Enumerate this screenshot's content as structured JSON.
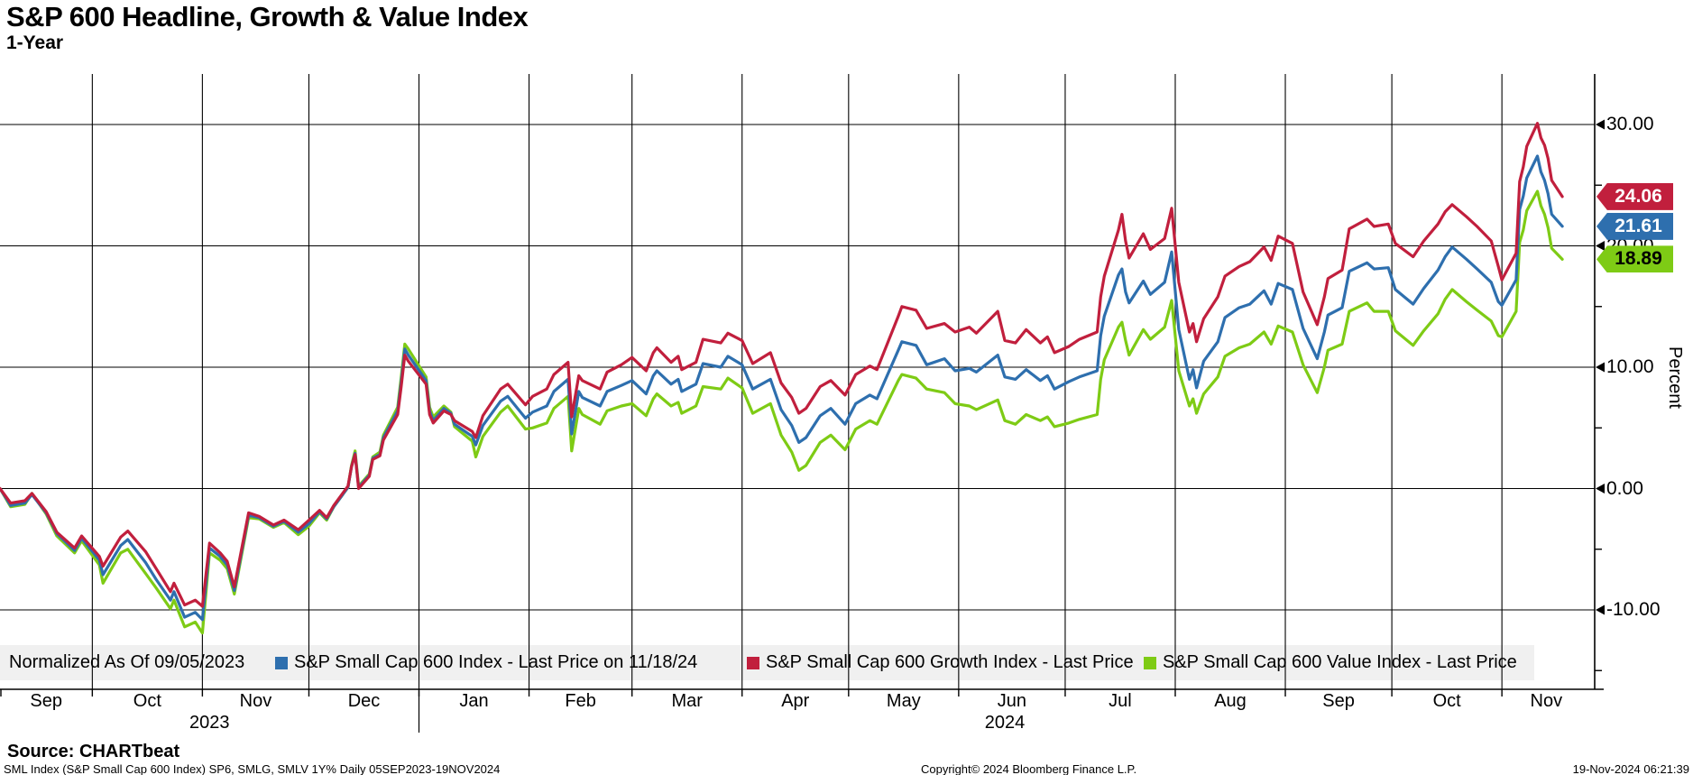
{
  "title": "S&P 600 Headline, Growth & Value Index",
  "subtitle": "1-Year",
  "y_axis": {
    "label": "Percent",
    "tick_labels": [
      "30.00",
      "20.00",
      "10.00",
      "0.00",
      "-10.00"
    ],
    "tick_values": [
      30,
      20,
      10,
      0,
      -10
    ],
    "minor_tick_values": [
      25,
      15,
      5,
      -5,
      -15
    ]
  },
  "last_price_badges": [
    {
      "value": "24.06",
      "v": 24.06,
      "bg": "#c11f3d",
      "fg": "#ffffff",
      "series": "growth"
    },
    {
      "value": "21.61",
      "v": 21.61,
      "bg": "#2e6fae",
      "fg": "#ffffff",
      "series": "headline"
    },
    {
      "value": "18.89",
      "v": 18.89,
      "bg": "#7ecb15",
      "fg": "#000000",
      "series": "value"
    }
  ],
  "legend": {
    "note": "Normalized As Of 09/05/2023",
    "band_color": "#f0f0f0",
    "items": [
      {
        "label": "S&P Small Cap 600 Index - Last Price on 11/18/24",
        "color": "#2e6fae",
        "series": "headline"
      },
      {
        "label": "S&P Small Cap 600 Growth Index - Last Price",
        "color": "#c11f3d",
        "series": "growth"
      },
      {
        "label": "S&P Small Cap 600 Value Index - Last Price",
        "color": "#7ecb15",
        "series": "value"
      }
    ]
  },
  "footer": {
    "source": "Source: CHARTbeat",
    "meta": "SML Index (S&P Small Cap 600 Index) SP6, SMLG, SMLV 1Y%  Daily 05SEP2023-19NOV2024",
    "copyright": "Copyright© 2024 Bloomberg Finance L.P.",
    "timestamp": "19-Nov-2024 06:21:39"
  },
  "chart_data": {
    "type": "line",
    "title": "S&P 600 Headline, Growth & Value Index",
    "ylabel": "Percent",
    "ylim": [
      -16.5,
      34
    ],
    "x_range": [
      "2023-09-05",
      "2024-11-19"
    ],
    "axis_end": "2024-11-26",
    "grid": true,
    "legend_position": "bottom",
    "month_gridlines": [
      "2023-10-01",
      "2023-11-01",
      "2023-12-01",
      "2024-01-01",
      "2024-02-01",
      "2024-03-01",
      "2024-04-01",
      "2024-05-01",
      "2024-06-01",
      "2024-07-01",
      "2024-08-01",
      "2024-09-01",
      "2024-10-01",
      "2024-11-01"
    ],
    "months": [
      {
        "label": "Sep",
        "start": "2023-09-05"
      },
      {
        "label": "Oct",
        "start": "2023-10-01"
      },
      {
        "label": "Nov",
        "start": "2023-11-01"
      },
      {
        "label": "Dec",
        "start": "2023-12-01"
      },
      {
        "label": "Jan",
        "start": "2024-01-01"
      },
      {
        "label": "Feb",
        "start": "2024-02-01"
      },
      {
        "label": "Mar",
        "start": "2024-03-01"
      },
      {
        "label": "Apr",
        "start": "2024-04-01"
      },
      {
        "label": "May",
        "start": "2024-05-01"
      },
      {
        "label": "Jun",
        "start": "2024-06-01"
      },
      {
        "label": "Jul",
        "start": "2024-07-01"
      },
      {
        "label": "Aug",
        "start": "2024-08-01"
      },
      {
        "label": "Sep",
        "start": "2024-09-01"
      },
      {
        "label": "Oct",
        "start": "2024-10-01"
      },
      {
        "label": "Nov",
        "start": "2024-11-01"
      }
    ],
    "years": [
      {
        "label": "2023",
        "start": "2023-09-05",
        "end": "2024-01-01"
      },
      {
        "label": "2024",
        "start": "2024-01-01",
        "end": "2024-11-26"
      }
    ],
    "series": [
      {
        "key": "value",
        "name": "S&P Small Cap 600 Value Index - Last Price",
        "color": "#7ecb15",
        "tuple_index": 3,
        "last": 18.89
      },
      {
        "key": "headline",
        "name": "S&P Small Cap 600 Index - Last Price on 11/18/24",
        "color": "#2e6fae",
        "tuple_index": 2,
        "last": 21.61
      },
      {
        "key": "growth",
        "name": "S&P Small Cap 600 Growth Index - Last Price",
        "color": "#c11f3d",
        "tuple_index": 1,
        "last": 24.06
      }
    ],
    "points": [
      [
        "2023-09-05",
        0,
        0,
        0
      ],
      [
        "2023-09-08",
        -1.2,
        -1.4,
        -1.5
      ],
      [
        "2023-09-12",
        -1.0,
        -1.2,
        -1.3
      ],
      [
        "2023-09-14",
        -0.4,
        -0.5,
        -0.4
      ],
      [
        "2023-09-18",
        -1.9,
        -2.0,
        -2.1
      ],
      [
        "2023-09-21",
        -3.6,
        -3.7,
        -3.9
      ],
      [
        "2023-09-26",
        -4.9,
        -5.1,
        -5.3
      ],
      [
        "2023-09-28",
        -3.9,
        -4.1,
        -4.3
      ],
      [
        "2023-10-03",
        -5.6,
        -5.9,
        -6.3
      ],
      [
        "2023-10-04",
        -6.4,
        -7.1,
        -7.8
      ],
      [
        "2023-10-09",
        -4.0,
        -4.7,
        -5.3
      ],
      [
        "2023-10-11",
        -3.5,
        -4.2,
        -5.0
      ],
      [
        "2023-10-16",
        -5.2,
        -6.1,
        -7.0
      ],
      [
        "2023-10-19",
        -6.6,
        -7.5,
        -8.2
      ],
      [
        "2023-10-23",
        -8.5,
        -9.2,
        -9.9
      ],
      [
        "2023-10-24",
        -7.8,
        -8.5,
        -9.2
      ],
      [
        "2023-10-27",
        -9.6,
        -10.6,
        -11.4
      ],
      [
        "2023-10-30",
        -9.2,
        -10.2,
        -11.0
      ],
      [
        "2023-11-01",
        -9.7,
        -10.8,
        -11.9
      ],
      [
        "2023-11-03",
        -4.5,
        -4.9,
        -5.3
      ],
      [
        "2023-11-06",
        -5.3,
        -5.6,
        -5.9
      ],
      [
        "2023-11-08",
        -6.0,
        -6.3,
        -6.6
      ],
      [
        "2023-11-10",
        -8.1,
        -8.4,
        -8.7
      ],
      [
        "2023-11-14",
        -2.0,
        -2.2,
        -2.4
      ],
      [
        "2023-11-17",
        -2.3,
        -2.4,
        -2.5
      ],
      [
        "2023-11-21",
        -3.0,
        -3.1,
        -3.2
      ],
      [
        "2023-11-24",
        -2.6,
        -2.7,
        -2.8
      ],
      [
        "2023-11-28",
        -3.4,
        -3.6,
        -3.8
      ],
      [
        "2023-12-01",
        -2.6,
        -2.9,
        -3.1
      ],
      [
        "2023-12-04",
        -1.8,
        -1.9,
        -2.0
      ],
      [
        "2023-12-06",
        -2.4,
        -2.5,
        -2.6
      ],
      [
        "2023-12-08",
        -1.4,
        -1.5,
        -1.5
      ],
      [
        "2023-12-12",
        0.2,
        0.1,
        0.1
      ],
      [
        "2023-12-13",
        1.8,
        1.8,
        1.9
      ],
      [
        "2023-12-14",
        2.8,
        2.9,
        3.1
      ],
      [
        "2023-12-15",
        0.0,
        0.1,
        0.2
      ],
      [
        "2023-12-18",
        1.0,
        1.1,
        1.2
      ],
      [
        "2023-12-19",
        2.4,
        2.5,
        2.6
      ],
      [
        "2023-12-21",
        2.7,
        2.8,
        3.0
      ],
      [
        "2023-12-22",
        4.0,
        4.2,
        4.4
      ],
      [
        "2023-12-26",
        6.1,
        6.4,
        6.7
      ],
      [
        "2023-12-27",
        8.4,
        8.8,
        9.2
      ],
      [
        "2023-12-28",
        11.0,
        11.5,
        11.9
      ],
      [
        "2023-12-29",
        10.5,
        11.0,
        11.5
      ],
      [
        "2024-01-03",
        8.6,
        8.9,
        9.2
      ],
      [
        "2024-01-04",
        6.1,
        6.4,
        6.7
      ],
      [
        "2024-01-05",
        5.4,
        5.6,
        5.9
      ],
      [
        "2024-01-08",
        6.4,
        6.6,
        6.8
      ],
      [
        "2024-01-10",
        6.1,
        6.2,
        6.3
      ],
      [
        "2024-01-11",
        5.6,
        5.3,
        5.1
      ],
      [
        "2024-01-16",
        4.7,
        4.3,
        3.9
      ],
      [
        "2024-01-17",
        4.2,
        3.6,
        2.6
      ],
      [
        "2024-01-19",
        6.0,
        5.2,
        4.3
      ],
      [
        "2024-01-24",
        8.2,
        7.2,
        6.3
      ],
      [
        "2024-01-26",
        8.6,
        7.6,
        6.8
      ],
      [
        "2024-01-31",
        6.9,
        5.8,
        4.9
      ],
      [
        "2024-02-02",
        7.6,
        6.3,
        5.0
      ],
      [
        "2024-02-06",
        8.2,
        6.8,
        5.4
      ],
      [
        "2024-02-08",
        9.4,
        8.0,
        6.6
      ],
      [
        "2024-02-12",
        10.4,
        9.0,
        7.6
      ],
      [
        "2024-02-13",
        5.9,
        4.5,
        3.1
      ],
      [
        "2024-02-15",
        9.3,
        8.0,
        6.6
      ],
      [
        "2024-02-16",
        8.9,
        7.5,
        6.1
      ],
      [
        "2024-02-21",
        8.2,
        6.8,
        5.3
      ],
      [
        "2024-02-23",
        9.6,
        8.0,
        6.4
      ],
      [
        "2024-02-27",
        10.2,
        8.5,
        6.8
      ],
      [
        "2024-03-01",
        10.8,
        8.9,
        7.0
      ],
      [
        "2024-03-05",
        9.7,
        7.8,
        6.0
      ],
      [
        "2024-03-07",
        11.2,
        9.3,
        7.4
      ],
      [
        "2024-03-08",
        11.6,
        9.7,
        7.8
      ],
      [
        "2024-03-12",
        10.4,
        8.6,
        6.8
      ],
      [
        "2024-03-14",
        10.9,
        9.0,
        7.1
      ],
      [
        "2024-03-15",
        9.8,
        8.0,
        6.2
      ],
      [
        "2024-03-19",
        10.4,
        8.6,
        6.8
      ],
      [
        "2024-03-21",
        12.3,
        10.3,
        8.4
      ],
      [
        "2024-03-26",
        12.0,
        10.0,
        8.2
      ],
      [
        "2024-03-28",
        12.8,
        10.9,
        9.1
      ],
      [
        "2024-04-01",
        12.2,
        10.2,
        8.3
      ],
      [
        "2024-04-04",
        10.3,
        8.2,
        6.2
      ],
      [
        "2024-04-09",
        11.2,
        9.0,
        7.0
      ],
      [
        "2024-04-12",
        8.7,
        6.5,
        4.4
      ],
      [
        "2024-04-15",
        7.5,
        5.2,
        3.0
      ],
      [
        "2024-04-17",
        6.2,
        3.8,
        1.5
      ],
      [
        "2024-04-19",
        6.6,
        4.2,
        1.9
      ],
      [
        "2024-04-23",
        8.4,
        6.0,
        3.8
      ],
      [
        "2024-04-26",
        8.9,
        6.6,
        4.4
      ],
      [
        "2024-04-30",
        7.7,
        5.3,
        3.2
      ],
      [
        "2024-05-03",
        9.4,
        7.0,
        4.9
      ],
      [
        "2024-05-07",
        10.1,
        7.7,
        5.6
      ],
      [
        "2024-05-09",
        9.8,
        7.4,
        5.3
      ],
      [
        "2024-05-15",
        14.2,
        11.4,
        8.9
      ],
      [
        "2024-05-16",
        15.0,
        12.1,
        9.4
      ],
      [
        "2024-05-20",
        14.7,
        11.8,
        9.1
      ],
      [
        "2024-05-23",
        13.2,
        10.2,
        8.2
      ],
      [
        "2024-05-28",
        13.6,
        10.7,
        7.9
      ],
      [
        "2024-05-31",
        12.9,
        9.7,
        7.0
      ],
      [
        "2024-06-04",
        13.3,
        9.9,
        6.8
      ],
      [
        "2024-06-06",
        12.8,
        9.6,
        6.5
      ],
      [
        "2024-06-12",
        14.6,
        11.0,
        7.3
      ],
      [
        "2024-06-14",
        12.2,
        9.2,
        5.6
      ],
      [
        "2024-06-17",
        12.0,
        9.0,
        5.3
      ],
      [
        "2024-06-20",
        13.1,
        9.8,
        6.1
      ],
      [
        "2024-06-24",
        12.0,
        8.9,
        5.6
      ],
      [
        "2024-06-26",
        12.5,
        9.3,
        5.9
      ],
      [
        "2024-06-28",
        11.2,
        8.2,
        5.1
      ],
      [
        "2024-07-02",
        11.7,
        8.8,
        5.4
      ],
      [
        "2024-07-05",
        12.3,
        9.2,
        5.7
      ],
      [
        "2024-07-10",
        12.9,
        9.7,
        6.1
      ],
      [
        "2024-07-11",
        15.8,
        12.6,
        9.0
      ],
      [
        "2024-07-12",
        17.5,
        14.2,
        10.6
      ],
      [
        "2024-07-16",
        21.3,
        17.6,
        13.3
      ],
      [
        "2024-07-17",
        22.6,
        18.1,
        13.7
      ],
      [
        "2024-07-18",
        20.4,
        16.2,
        12.2
      ],
      [
        "2024-07-19",
        19.0,
        15.3,
        11.0
      ],
      [
        "2024-07-23",
        21.0,
        17.1,
        13.1
      ],
      [
        "2024-07-25",
        19.7,
        16.0,
        12.3
      ],
      [
        "2024-07-29",
        20.6,
        17.0,
        13.3
      ],
      [
        "2024-07-31",
        23.1,
        19.5,
        15.5
      ],
      [
        "2024-08-02",
        17.0,
        13.1,
        9.7
      ],
      [
        "2024-08-05",
        12.9,
        9.0,
        6.8
      ],
      [
        "2024-08-06",
        13.6,
        9.8,
        7.4
      ],
      [
        "2024-08-07",
        12.1,
        8.3,
        6.2
      ],
      [
        "2024-08-09",
        14.0,
        10.5,
        7.8
      ],
      [
        "2024-08-13",
        15.8,
        12.1,
        9.2
      ],
      [
        "2024-08-15",
        17.5,
        14.1,
        10.9
      ],
      [
        "2024-08-19",
        18.3,
        14.9,
        11.6
      ],
      [
        "2024-08-22",
        18.7,
        15.2,
        11.9
      ],
      [
        "2024-08-26",
        19.9,
        16.3,
        12.9
      ],
      [
        "2024-08-28",
        18.8,
        15.2,
        11.9
      ],
      [
        "2024-08-30",
        20.8,
        16.9,
        13.4
      ],
      [
        "2024-09-03",
        20.2,
        16.4,
        12.9
      ],
      [
        "2024-09-06",
        16.2,
        13.2,
        10.2
      ],
      [
        "2024-09-10",
        13.5,
        10.7,
        7.9
      ],
      [
        "2024-09-12",
        15.8,
        12.9,
        10.0
      ],
      [
        "2024-09-13",
        17.3,
        14.3,
        11.4
      ],
      [
        "2024-09-17",
        18.0,
        14.9,
        11.9
      ],
      [
        "2024-09-19",
        21.4,
        17.9,
        14.6
      ],
      [
        "2024-09-24",
        22.2,
        18.6,
        15.3
      ],
      [
        "2024-09-26",
        21.6,
        18.1,
        14.6
      ],
      [
        "2024-09-30",
        21.8,
        18.2,
        14.6
      ],
      [
        "2024-10-02",
        20.2,
        16.4,
        13.0
      ],
      [
        "2024-10-07",
        19.1,
        15.2,
        11.8
      ],
      [
        "2024-10-10",
        20.4,
        16.5,
        13.0
      ],
      [
        "2024-10-14",
        21.8,
        18.0,
        14.4
      ],
      [
        "2024-10-16",
        22.8,
        19.1,
        15.6
      ],
      [
        "2024-10-18",
        23.4,
        19.9,
        16.4
      ],
      [
        "2024-10-22",
        22.4,
        18.9,
        15.4
      ],
      [
        "2024-10-25",
        21.6,
        18.1,
        14.7
      ],
      [
        "2024-10-29",
        20.4,
        17.0,
        13.8
      ],
      [
        "2024-10-31",
        18.3,
        15.4,
        12.6
      ],
      [
        "2024-11-01",
        17.2,
        15.1,
        12.5
      ],
      [
        "2024-11-05",
        19.4,
        17.2,
        14.6
      ],
      [
        "2024-11-06",
        25.3,
        23.0,
        20.3
      ],
      [
        "2024-11-07",
        26.5,
        24.1,
        21.3
      ],
      [
        "2024-11-08",
        28.2,
        25.6,
        22.9
      ],
      [
        "2024-11-11",
        30.1,
        27.4,
        24.5
      ],
      [
        "2024-11-12",
        28.9,
        26.1,
        23.3
      ],
      [
        "2024-11-13",
        28.3,
        25.4,
        22.6
      ],
      [
        "2024-11-14",
        27.2,
        24.3,
        21.5
      ],
      [
        "2024-11-15",
        25.4,
        22.6,
        19.8
      ],
      [
        "2024-11-18",
        24.06,
        21.61,
        18.89
      ]
    ]
  }
}
